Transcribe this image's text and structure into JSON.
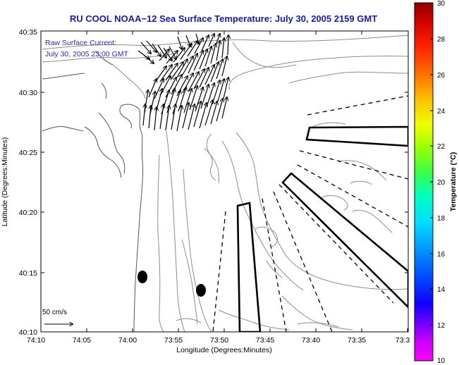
{
  "title": "RU COOL  NOAA−12  Sea Surface Temperature:  July 30, 2005 2159 GMT",
  "annotation": {
    "line1": "Raw Surface Current:",
    "line2": "July 30, 2005 23:00 GMT"
  },
  "scale": {
    "label": "50 cm/s",
    "speed_cm_s": 50
  },
  "x_axis": {
    "label": "Longitude (Degrees:Minutes)",
    "ticks": [
      "74:10",
      "74:05",
      "74:00",
      "73:55",
      "73:50",
      "73:45",
      "73:40",
      "73:35",
      "73:3"
    ]
  },
  "y_axis": {
    "label": "Latitude (Degrees:Minutes)",
    "ticks": [
      "40:35",
      "40:30",
      "40:25",
      "40:20",
      "40:15",
      "40:10"
    ]
  },
  "colorbar": {
    "label": "Temperature (°C)",
    "min": 10,
    "max": 30,
    "ticks": [
      "30",
      "28",
      "26",
      "24",
      "22",
      "20",
      "18",
      "16",
      "14",
      "12",
      "10"
    ]
  },
  "colors": {
    "title": "#1a1aa8",
    "annotation": "#2a2ab0",
    "contour": "#8c8c8c",
    "coast": "#555555",
    "frame": "#000000"
  }
}
